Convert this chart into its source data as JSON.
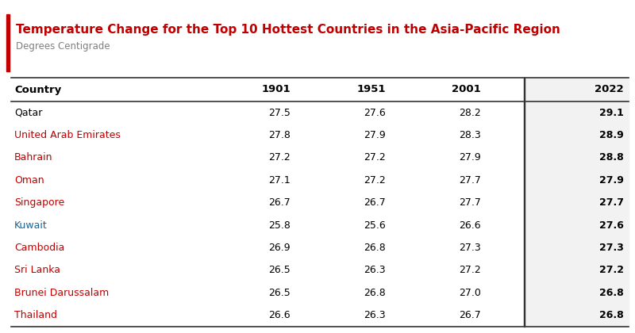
{
  "title": "Temperature Change for the Top 10 Hottest Countries in the Asia-Pacific Region",
  "subtitle": "Degrees Centigrade",
  "columns": [
    "Country",
    "1901",
    "1951",
    "2001",
    "2022"
  ],
  "rows": [
    {
      "country": "Qatar",
      "color": "#000000",
      "vals": [
        27.5,
        27.6,
        28.2,
        29.1
      ]
    },
    {
      "country": "United Arab Emirates",
      "color": "#c00000",
      "vals": [
        27.8,
        27.9,
        28.3,
        28.9
      ]
    },
    {
      "country": "Bahrain",
      "color": "#c00000",
      "vals": [
        27.2,
        27.2,
        27.9,
        28.8
      ]
    },
    {
      "country": "Oman",
      "color": "#c00000",
      "vals": [
        27.1,
        27.2,
        27.7,
        27.9
      ]
    },
    {
      "country": "Singapore",
      "color": "#c00000",
      "vals": [
        26.7,
        26.7,
        27.7,
        27.7
      ]
    },
    {
      "country": "Kuwait",
      "color": "#1f6391",
      "vals": [
        25.8,
        25.6,
        26.6,
        27.6
      ]
    },
    {
      "country": "Cambodia",
      "color": "#c00000",
      "vals": [
        26.9,
        26.8,
        27.3,
        27.3
      ]
    },
    {
      "country": "Sri Lanka",
      "color": "#c00000",
      "vals": [
        26.5,
        26.3,
        27.2,
        27.2
      ]
    },
    {
      "country": "Brunei Darussalam",
      "color": "#c00000",
      "vals": [
        26.5,
        26.8,
        27.0,
        26.8
      ]
    },
    {
      "country": "Thailand",
      "color": "#c00000",
      "vals": [
        26.6,
        26.3,
        26.7,
        26.8
      ]
    }
  ],
  "title_color": "#c00000",
  "subtitle_color": "#7f7f7f",
  "last_col_bg": "#f2f2f2",
  "accent_bar_color": "#c00000",
  "bg_color": "#ffffff",
  "border_color": "#333333",
  "header_font_size": 9.5,
  "row_font_size": 9.0,
  "title_font_size": 11.0,
  "subtitle_font_size": 8.5
}
